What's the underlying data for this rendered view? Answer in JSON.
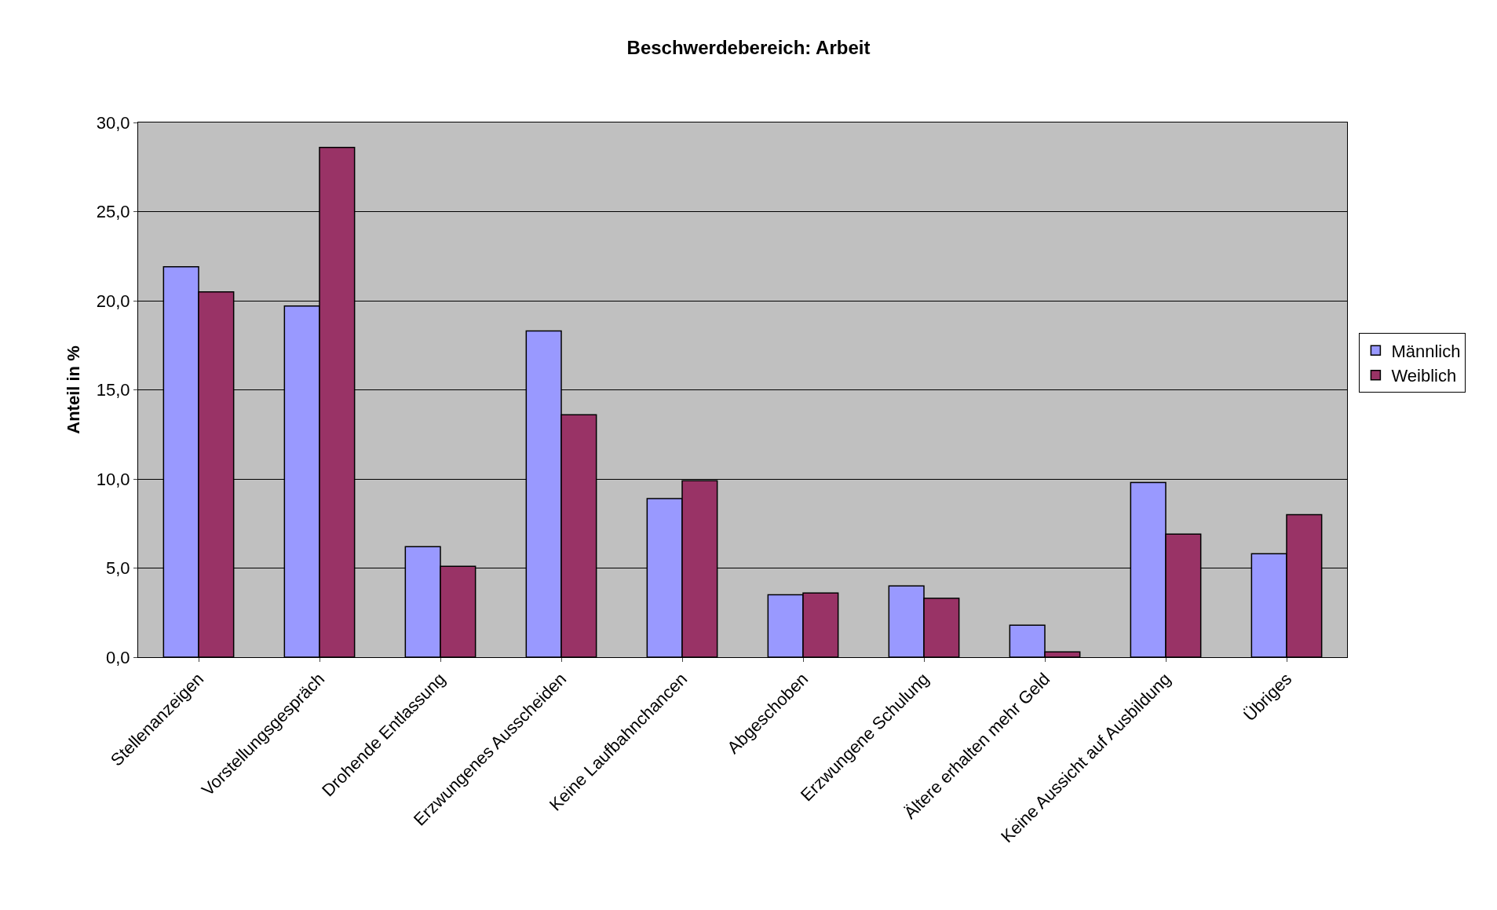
{
  "chart_data": {
    "type": "bar",
    "title": "Beschwerdebereich: Arbeit",
    "ylabel": "Anteil in %",
    "categories": [
      "Stellenanzeigen",
      "Vorstellungsgespräch",
      "Drohende Entlassung",
      "Erzwungenes Ausscheiden",
      "Keine Laufbahnchancen",
      "Abgeschoben",
      "Erzwungene Schulung",
      "Ältere erhalten mehr Geld",
      "Keine Aussicht auf Ausbildung",
      "Übriges"
    ],
    "series": [
      {
        "name": "Männlich",
        "color": "#9999ff",
        "values": [
          21.9,
          19.7,
          6.2,
          18.3,
          8.9,
          3.5,
          4.0,
          1.8,
          9.8,
          5.8
        ]
      },
      {
        "name": "Weiblich",
        "color": "#993366",
        "values": [
          20.5,
          28.6,
          5.1,
          13.6,
          9.9,
          3.6,
          3.3,
          0.3,
          6.9,
          8.0
        ]
      }
    ],
    "ylim": [
      0,
      30
    ],
    "yticks": [
      {
        "value": 0,
        "label": "0,0"
      },
      {
        "value": 5,
        "label": "5,0"
      },
      {
        "value": 10,
        "label": "10,0"
      },
      {
        "value": 15,
        "label": "15,0"
      },
      {
        "value": 20,
        "label": "20,0"
      },
      {
        "value": 25,
        "label": "25,0"
      },
      {
        "value": 30,
        "label": "30,0"
      }
    ],
    "grid": "y",
    "legend": "right"
  }
}
